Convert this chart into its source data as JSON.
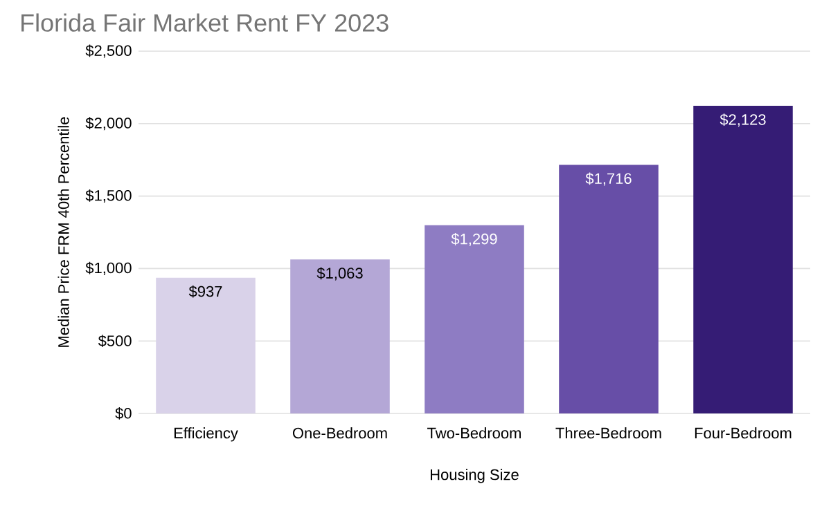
{
  "chart_data": {
    "type": "bar",
    "title": "Florida Fair Market Rent FY 2023",
    "xlabel": "Housing Size",
    "ylabel": "Median Price FRM 40th Percentile",
    "categories": [
      "Efficiency",
      "One-Bedroom",
      "Two-Bedroom",
      "Three-Bedroom",
      "Four-Bedroom"
    ],
    "values": [
      937,
      1063,
      1299,
      1716,
      2123
    ],
    "colors": [
      "#d9d2e9",
      "#b4a7d6",
      "#8e7cc3",
      "#674ea7",
      "#351c75"
    ],
    "value_labels": [
      "$937",
      "$1,063",
      "$1,299",
      "$1,716",
      "$2,123"
    ],
    "ylim": [
      0,
      2500
    ],
    "yticks": [
      {
        "value": 0,
        "label": "$0"
      },
      {
        "value": 500,
        "label": "$500"
      },
      {
        "value": 1000,
        "label": "$1,000"
      },
      {
        "value": 1500,
        "label": "$1,500"
      },
      {
        "value": 2000,
        "label": "$2,000"
      },
      {
        "value": 2500,
        "label": "$2,500"
      }
    ],
    "grid": "y",
    "legend": false
  }
}
